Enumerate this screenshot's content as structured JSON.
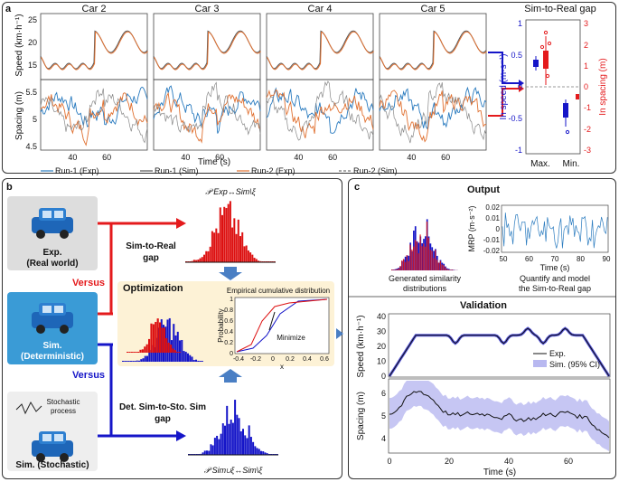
{
  "panel_a": {
    "label": "a",
    "speed_ylabel": "Speed (km·h⁻¹)",
    "spacing_ylabel": "Spacing (m)",
    "xlabel": "Time (s)",
    "car_titles": [
      "Car 2",
      "Car 3",
      "Car 4",
      "Car 5"
    ],
    "speed_ticks": [
      "25",
      "20",
      "15"
    ],
    "spacing_ticks": [
      "5.5",
      "5",
      "4.5"
    ],
    "time_ticks": [
      "40",
      "60"
    ],
    "legend": [
      {
        "label": "Run-1 (Exp)",
        "color": "#2a7bbf",
        "dash": false
      },
      {
        "label": "Run-1 (Sim)",
        "color": "#555555",
        "dash": false
      },
      {
        "label": "Run-2 (Exp)",
        "color": "#e07030",
        "dash": false
      },
      {
        "label": "Run-2 (Sim)",
        "color": "#777777",
        "dash": true
      }
    ],
    "gap_title": "Sim-to-Real gap",
    "gap_left_ylabel": "In speed (m·s⁻¹)",
    "gap_right_ylabel": "In spacing (m)",
    "gap_left_ticks": [
      "1",
      "0.5",
      "0",
      "-0.5",
      "-1"
    ],
    "gap_right_ticks": [
      "3",
      "2",
      "1",
      "0",
      "-1",
      "-2",
      "-3"
    ],
    "gap_xticks": [
      "Max.",
      "Min."
    ]
  },
  "panel_b": {
    "label": "b",
    "exp_car_label1": "Exp.",
    "exp_car_label2": "(Real world)",
    "sim_det_label1": "Sim.",
    "sim_det_label2": "(Deterministic)",
    "sim_sto_label": "Sim. (Stochastic)",
    "stochastic_note1": "Stochastic",
    "stochastic_note2": "process",
    "versus_top": "Versus",
    "versus_bottom": "Versus",
    "sim_to_real_gap1": "Sim-to-Real",
    "sim_to_real_gap2": "gap",
    "det_sto_gap1": "Det. Sim-to-Sto. Sim",
    "det_sto_gap2": "gap",
    "top_dist_label": "𝒫 Exp↔Sim\\ξ",
    "bottom_dist_label": "𝒫 Sim∪ξ↔Sim\\ξ",
    "optimization_title": "Optimization",
    "ecdf_title": "Empirical cumulative distribution",
    "ecdf_ylabel": "Probability",
    "ecdf_xlabel": "x",
    "ecdf_yticks": [
      "1",
      "0.8",
      "0.6",
      "0.4",
      "0.2",
      "0"
    ],
    "ecdf_xticks": [
      "-0.4",
      "-0.2",
      "0",
      "0.2",
      "0.4",
      "0.6"
    ],
    "minimize_label": "Minimize"
  },
  "panel_c": {
    "label": "c",
    "output_title": "Output",
    "generated_label1": "Generated similarity",
    "generated_label2": "distributions",
    "mrp_ylabel": "MRP (m·s⁻²)",
    "mrp_yticks": [
      "0.02",
      "0.01",
      "0",
      "-0.01",
      "-0.02"
    ],
    "mrp_xticks": [
      "50",
      "60",
      "70",
      "80",
      "90"
    ],
    "mrp_xlabel": "Time (s)",
    "quantify_label1": "Quantify and model",
    "quantify_label2": "the Sim-to-Real gap",
    "validation_title": "Validation",
    "val_speed_ylabel": "Speed (km·h⁻¹)",
    "val_spacing_ylabel": "Spacing (m)",
    "val_speed_ticks": [
      "40",
      "30",
      "20",
      "10",
      "0"
    ],
    "val_spacing_ticks": [
      "6",
      "5",
      "4"
    ],
    "val_xticks": [
      "0",
      "20",
      "40",
      "60"
    ],
    "val_xlabel": "Time (s)",
    "val_legend_exp": "Exp.",
    "val_legend_sim": "Sim. (95% CI)"
  },
  "colors": {
    "red": "#e41a1c",
    "blue": "#1515c8",
    "exp_blue": "#2a7bbf",
    "orange": "#e07030",
    "panel_bg": "#fdf2d6",
    "ci": "#b8b8f0"
  }
}
